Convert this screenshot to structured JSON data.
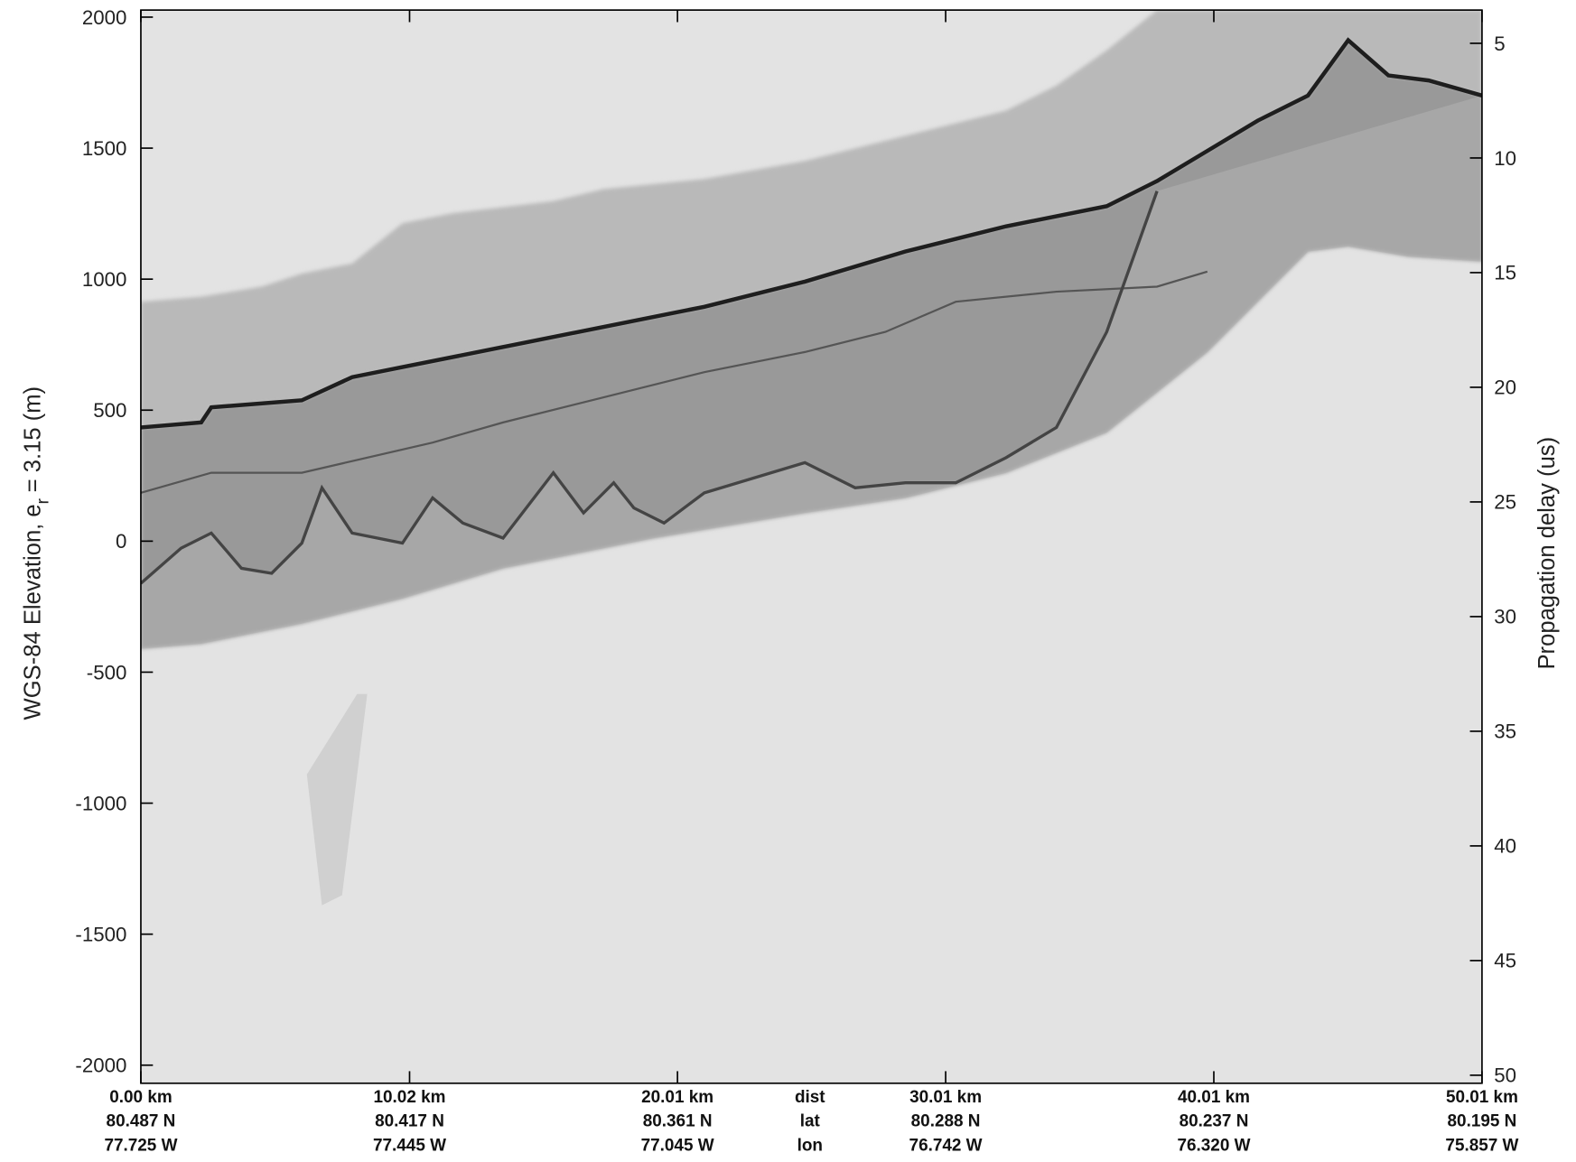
{
  "chart_data": {
    "type": "radargram",
    "ylabel": "WGS-84 Elevation, e",
    "ylabel_sub": "r",
    "ylabel_tail": "= 3.15 (m)",
    "y2label": "Propagation delay (us)",
    "ylim": [
      -2069,
      2027
    ],
    "yticks": [
      2000,
      1500,
      1000,
      500,
      0,
      -500,
      -1000,
      -1500,
      -2000
    ],
    "y2lim": [
      3.55,
      50.35
    ],
    "y2ticks": [
      5,
      10,
      15,
      20,
      25,
      30,
      35,
      40,
      45,
      50
    ],
    "xlim": [
      0,
      50.01
    ],
    "xticks": [
      {
        "value": 0,
        "label": "0.00 km"
      },
      {
        "value": 10.02,
        "label": "10.02 km"
      },
      {
        "value": 20.01,
        "label": "20.01 km"
      },
      {
        "value": 30.01,
        "label": "30.01 km"
      },
      {
        "value": 40.01,
        "label": "40.01 km"
      },
      {
        "value": 50.01,
        "label": "50.01 km"
      }
    ],
    "xtick_lat": [
      "80.487 N",
      "80.417 N",
      "80.361 N",
      "80.288 N",
      "80.237 N",
      "80.195 N"
    ],
    "xtick_lon": [
      "77.725 W",
      "77.445 W",
      "77.045 W",
      "76.742 W",
      "76.320 W",
      "75.857 W"
    ],
    "row_labels": [
      "dist",
      "lat",
      "lon"
    ]
  }
}
